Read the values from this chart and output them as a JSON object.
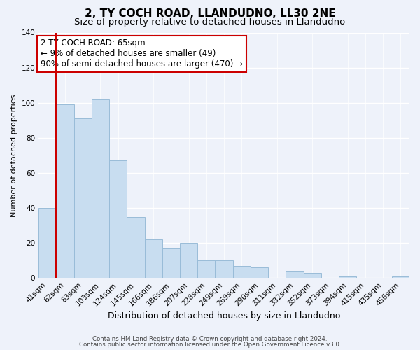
{
  "title": "2, TY COCH ROAD, LLANDUDNO, LL30 2NE",
  "subtitle": "Size of property relative to detached houses in Llandudno",
  "xlabel": "Distribution of detached houses by size in Llandudno",
  "ylabel": "Number of detached properties",
  "bar_labels": [
    "41sqm",
    "62sqm",
    "83sqm",
    "103sqm",
    "124sqm",
    "145sqm",
    "166sqm",
    "186sqm",
    "207sqm",
    "228sqm",
    "249sqm",
    "269sqm",
    "290sqm",
    "311sqm",
    "332sqm",
    "352sqm",
    "373sqm",
    "394sqm",
    "415sqm",
    "435sqm",
    "456sqm"
  ],
  "bar_values": [
    40,
    99,
    91,
    102,
    67,
    35,
    22,
    17,
    20,
    10,
    10,
    7,
    6,
    0,
    4,
    3,
    0,
    1,
    0,
    0,
    1
  ],
  "bar_color": "#c8ddf0",
  "bar_edge_color": "#99bcd8",
  "highlight_bar_index": 1,
  "highlight_line_color": "#cc0000",
  "ylim": [
    0,
    140
  ],
  "yticks": [
    0,
    20,
    40,
    60,
    80,
    100,
    120,
    140
  ],
  "annotation_line1": "2 TY COCH ROAD: 65sqm",
  "annotation_line2": "← 9% of detached houses are smaller (49)",
  "annotation_line3": "90% of semi-detached houses are larger (470) →",
  "annotation_box_edge_color": "#cc0000",
  "annotation_box_facecolor": "#ffffff",
  "annotation_fontsize": 8.5,
  "footer_line1": "Contains HM Land Registry data © Crown copyright and database right 2024.",
  "footer_line2": "Contains public sector information licensed under the Open Government Licence v3.0.",
  "background_color": "#eef2fa",
  "grid_color": "#ffffff",
  "title_fontsize": 11,
  "subtitle_fontsize": 9.5,
  "xlabel_fontsize": 9,
  "ylabel_fontsize": 8,
  "tick_fontsize": 7.5
}
